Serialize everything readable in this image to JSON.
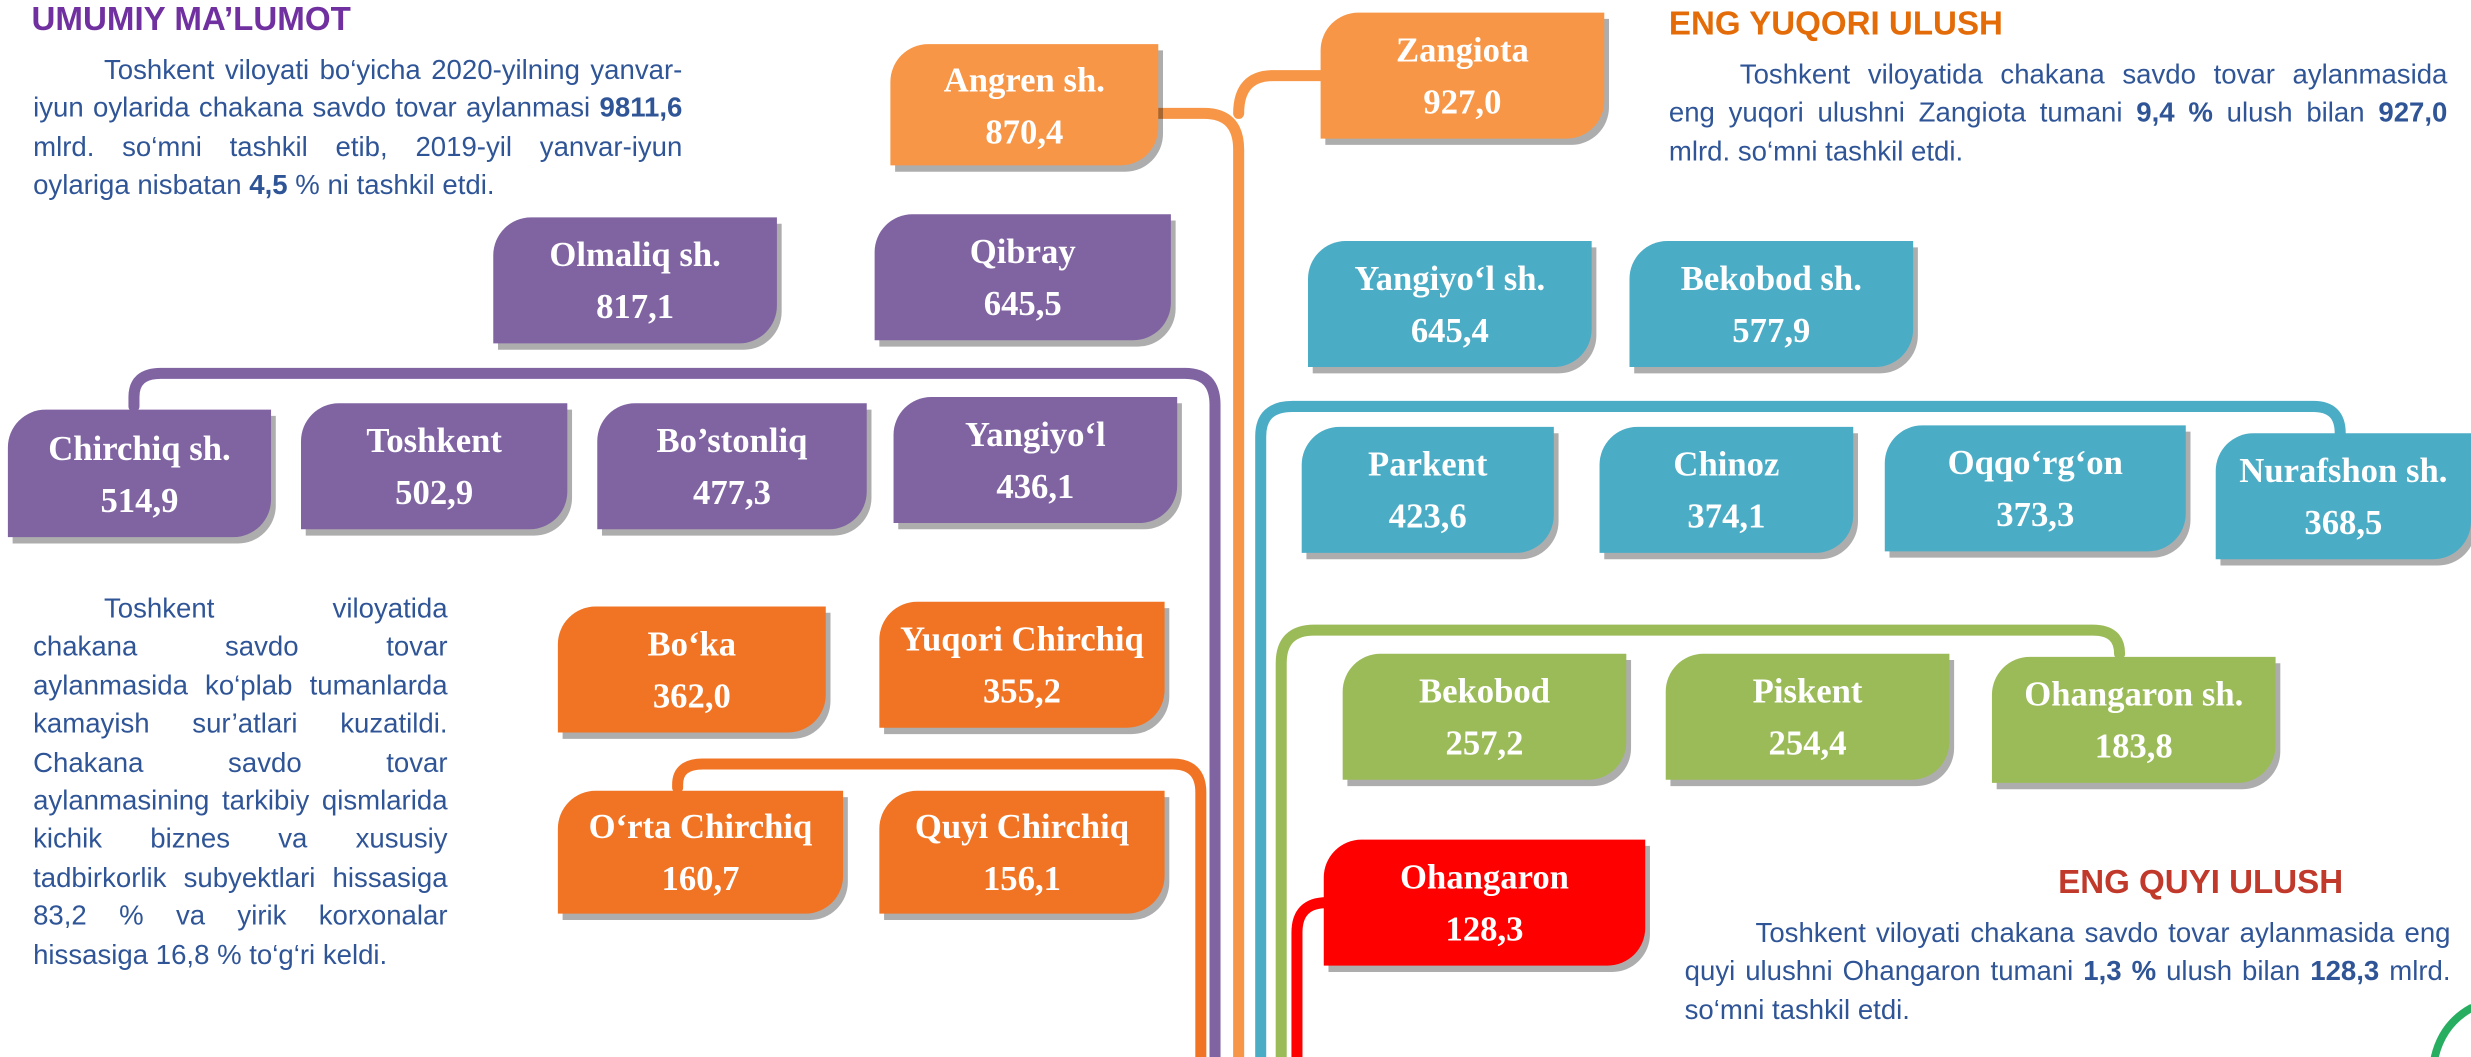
{
  "info": {
    "title": "UMUMIY MA’LUMOT",
    "text": [
      {
        "text": "Toshkent viloyati bo‘yicha 2020-yilning yanvar-iyun oylarida chakana savdo tovar aylanmasi "
      },
      {
        "text": "9811,6",
        "strong": true
      },
      {
        "text": " mlrd. so‘mni tashkil etib, 2019-yil yanvar-iyun oylariga nisbatan "
      },
      {
        "text": "4,5",
        "strong": true
      },
      {
        "text": " % ni tashkil etdi."
      }
    ]
  },
  "note": {
    "text": [
      {
        "text": "Toshkent viloyatida chakana savdo tovar aylanmasida ko‘plab tumanlarda kamayish sur’atlari kuzatildi. Chakana savdo tovar aylanmasining tarkibiy qismlarida kichik biznes va xususiy tadbirkorlik subyektlari hissasiga 83,2 % va yirik korxonalar hissasiga 16,8 %  to‘g‘ri keldi."
      }
    ]
  },
  "top": {
    "title": "ENG YUQORI ULUSH",
    "text": [
      {
        "text": "Toshkent viloyatida chakana savdo tovar aylanmasida eng yuqori ulushni Zangiota tumani "
      },
      {
        "text": "9,4 %",
        "strong": true
      },
      {
        "text": " ulush bilan "
      },
      {
        "text": "927,0",
        "strong": true
      },
      {
        "text": " mlrd. so‘mni tashkil etdi."
      }
    ]
  },
  "bottom": {
    "title": "ENG QUYI ULUSH",
    "text": [
      {
        "text": "Toshkent viloyati chakana savdo tovar aylanmasida eng quyi ulushni Ohangaron tumani "
      },
      {
        "text": "1,3 %",
        "strong": true
      },
      {
        "text": " ulush bilan "
      },
      {
        "text": "128,3",
        "strong": true
      },
      {
        "text": " mlrd. so‘mni tashkil etdi."
      }
    ]
  },
  "groups": [
    {
      "color": "#f79646",
      "items": [
        {
          "name": "Angren sh.",
          "value": "870,4"
        },
        {
          "name": "Zangiota",
          "value": "927,0"
        }
      ]
    },
    {
      "color": "#8064a2",
      "items": [
        {
          "name": "Olmaliq sh.",
          "value": "817,1"
        },
        {
          "name": "Qibray",
          "value": "645,5"
        },
        {
          "name": "Chirchiq sh.",
          "value": "514,9"
        },
        {
          "name": "Toshkent",
          "value": "502,9"
        },
        {
          "name": "Bo’stonliq",
          "value": "477,3"
        },
        {
          "name": "Yangiyo‘l",
          "value": "436,1"
        }
      ]
    },
    {
      "color": "#f07424",
      "items": [
        {
          "name": "Bo‘ka",
          "value": "362,0"
        },
        {
          "name": "Yuqori Chirchiq",
          "value": "355,2"
        },
        {
          "name": "O‘rta Chirchiq",
          "value": "160,7"
        },
        {
          "name": "Quyi Chirchiq",
          "value": "156,1"
        }
      ]
    },
    {
      "color": "#4bacc6",
      "items": [
        {
          "name": "Yangiyo‘l sh.",
          "value": "645,4"
        },
        {
          "name": "Bekobod sh.",
          "value": "577,9"
        },
        {
          "name": "Parkent",
          "value": "423,6"
        },
        {
          "name": "Chinoz",
          "value": "374,1"
        },
        {
          "name": "Oqqo‘rg‘on",
          "value": "373,3"
        },
        {
          "name": "Nurafshon sh.",
          "value": "368,5"
        }
      ]
    },
    {
      "color": "#9bbb59",
      "items": [
        {
          "name": "Bekobod",
          "value": "257,2"
        },
        {
          "name": "Piskent",
          "value": "254,4"
        },
        {
          "name": "Ohangaron sh.",
          "value": "183,8"
        }
      ]
    },
    {
      "color": "#ff0000",
      "items": [
        {
          "name": "Ohangaron",
          "value": "128,3"
        }
      ]
    }
  ]
}
